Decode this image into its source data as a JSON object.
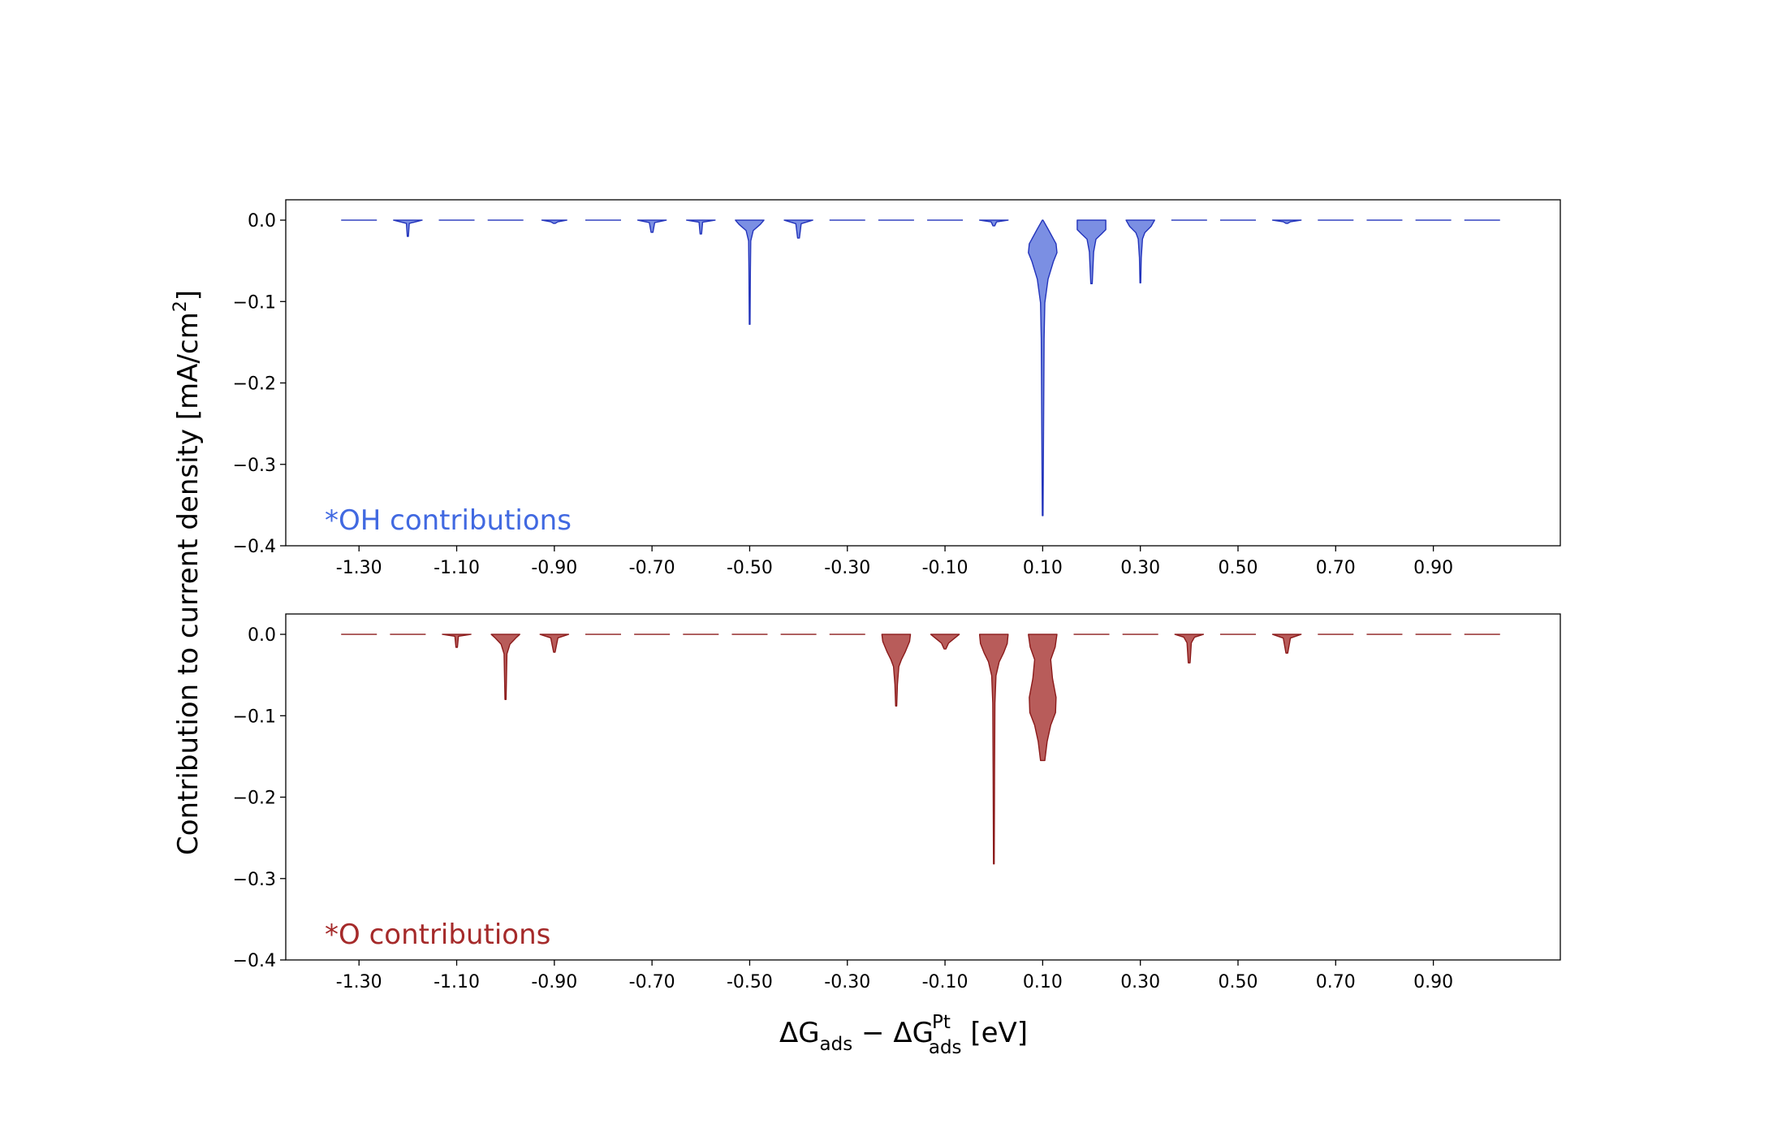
{
  "figure": {
    "ylabel_main": "Contribution to current density [mA/cm",
    "ylabel_sup": "2",
    "ylabel_close": "]",
    "xlabel": {
      "delta1": "ΔG",
      "sub1": "ads",
      "minus": " − ",
      "delta2": "ΔG",
      "sup2": "Pt",
      "sub2": "ads",
      "unit": " [eV]"
    }
  },
  "chart_data": [
    {
      "type": "violin",
      "panel_label": "*OH contributions",
      "panel_label_color": "#4169e1",
      "fill_color": "#7b8fe3",
      "edge_color": "#2233bb",
      "x_tick_labels": [
        "-1.30",
        "-1.10",
        "-0.90",
        "-0.70",
        "-0.50",
        "-0.30",
        "-0.10",
        "0.10",
        "0.30",
        "0.50",
        "0.70",
        "0.90"
      ],
      "x_ticks": [
        -1.3,
        -1.1,
        -0.9,
        -0.7,
        -0.5,
        -0.3,
        -0.1,
        0.1,
        0.3,
        0.5,
        0.7,
        0.9
      ],
      "xlim": [
        -1.45,
        1.16
      ],
      "y_tick_labels": [
        "0.0",
        "−0.1",
        "−0.2",
        "−0.3",
        "−0.4"
      ],
      "y_ticks": [
        0.0,
        -0.1,
        -0.2,
        -0.3,
        -0.4
      ],
      "ylim": [
        -0.4,
        0.025
      ],
      "violins": [
        {
          "x": -1.3,
          "min": 0
        },
        {
          "x": -1.2,
          "min": -0.02,
          "profile": [
            [
              0,
              0.8
            ],
            [
              0.2,
              0.08
            ],
            [
              1,
              0.03
            ]
          ]
        },
        {
          "x": -1.1,
          "min": 0
        },
        {
          "x": -1.0,
          "min": 0
        },
        {
          "x": -0.9,
          "min": -0.004,
          "profile": [
            [
              0,
              0.7
            ],
            [
              0.5,
              0.2
            ],
            [
              1,
              0.05
            ]
          ]
        },
        {
          "x": -0.8,
          "min": 0
        },
        {
          "x": -0.7,
          "min": -0.015,
          "profile": [
            [
              0,
              0.8
            ],
            [
              0.2,
              0.15
            ],
            [
              0.6,
              0.1
            ],
            [
              1,
              0.05
            ]
          ]
        },
        {
          "x": -0.6,
          "min": -0.017,
          "profile": [
            [
              0,
              0.8
            ],
            [
              0.15,
              0.1
            ],
            [
              1,
              0.04
            ]
          ]
        },
        {
          "x": -0.5,
          "min": -0.128,
          "profile": [
            [
              0,
              0.8
            ],
            [
              0.04,
              0.6
            ],
            [
              0.1,
              0.2
            ],
            [
              0.2,
              0.06
            ],
            [
              0.5,
              0.04
            ],
            [
              1,
              0.02
            ]
          ]
        },
        {
          "x": -0.4,
          "min": -0.022,
          "profile": [
            [
              0,
              0.8
            ],
            [
              0.2,
              0.15
            ],
            [
              1,
              0.05
            ]
          ]
        },
        {
          "x": -0.3,
          "min": 0
        },
        {
          "x": -0.2,
          "min": 0
        },
        {
          "x": -0.1,
          "min": 0
        },
        {
          "x": 0.0,
          "min": -0.007,
          "profile": [
            [
              0,
              0.8
            ],
            [
              0.3,
              0.15
            ],
            [
              1,
              0.05
            ]
          ]
        },
        {
          "x": 0.1,
          "min": -0.363,
          "profile": [
            [
              0,
              0.02
            ],
            [
              0.03,
              0.3
            ],
            [
              0.08,
              0.75
            ],
            [
              0.11,
              0.8
            ],
            [
              0.14,
              0.6
            ],
            [
              0.2,
              0.3
            ],
            [
              0.28,
              0.12
            ],
            [
              0.4,
              0.08
            ],
            [
              0.7,
              0.05
            ],
            [
              1,
              0.02
            ]
          ]
        },
        {
          "x": 0.2,
          "min": -0.078,
          "profile": [
            [
              0,
              0.8
            ],
            [
              0.15,
              0.8
            ],
            [
              0.22,
              0.55
            ],
            [
              0.3,
              0.25
            ],
            [
              0.5,
              0.12
            ],
            [
              1,
              0.04
            ]
          ]
        },
        {
          "x": 0.3,
          "min": -0.077,
          "profile": [
            [
              0,
              0.8
            ],
            [
              0.1,
              0.6
            ],
            [
              0.2,
              0.25
            ],
            [
              0.3,
              0.12
            ],
            [
              0.6,
              0.05
            ],
            [
              1,
              0.02
            ]
          ]
        },
        {
          "x": 0.4,
          "min": 0
        },
        {
          "x": 0.5,
          "min": 0
        },
        {
          "x": 0.6,
          "min": -0.004,
          "profile": [
            [
              0,
              0.8
            ],
            [
              0.5,
              0.2
            ],
            [
              1,
              0.05
            ]
          ]
        },
        {
          "x": 0.7,
          "min": 0
        },
        {
          "x": 0.8,
          "min": 0
        },
        {
          "x": 0.9,
          "min": 0
        },
        {
          "x": 1.0,
          "min": 0
        }
      ]
    },
    {
      "type": "violin",
      "panel_label": "*O contributions",
      "panel_label_color": "#a52a2a",
      "fill_color": "#b85c5a",
      "edge_color": "#8b1a1a",
      "x_tick_labels": [
        "-1.30",
        "-1.10",
        "-0.90",
        "-0.70",
        "-0.50",
        "-0.30",
        "-0.10",
        "0.10",
        "0.30",
        "0.50",
        "0.70",
        "0.90"
      ],
      "x_ticks": [
        -1.3,
        -1.1,
        -0.9,
        -0.7,
        -0.5,
        -0.3,
        -0.1,
        0.1,
        0.3,
        0.5,
        0.7,
        0.9
      ],
      "xlim": [
        -1.45,
        1.16
      ],
      "y_tick_labels": [
        "0.0",
        "−0.1",
        "−0.2",
        "−0.3",
        "−0.4"
      ],
      "y_ticks": [
        0.0,
        -0.1,
        -0.2,
        -0.3,
        -0.4
      ],
      "ylim": [
        -0.4,
        0.025
      ],
      "violins": [
        {
          "x": -1.3,
          "min": 0
        },
        {
          "x": -1.2,
          "min": 0
        },
        {
          "x": -1.1,
          "min": -0.016,
          "profile": [
            [
              0,
              0.8
            ],
            [
              0.15,
              0.1
            ],
            [
              1,
              0.04
            ]
          ]
        },
        {
          "x": -1.0,
          "min": -0.08,
          "profile": [
            [
              0,
              0.8
            ],
            [
              0.05,
              0.6
            ],
            [
              0.15,
              0.25
            ],
            [
              0.3,
              0.08
            ],
            [
              1,
              0.03
            ]
          ]
        },
        {
          "x": -0.9,
          "min": -0.022,
          "profile": [
            [
              0,
              0.8
            ],
            [
              0.2,
              0.2
            ],
            [
              1,
              0.04
            ]
          ]
        },
        {
          "x": -0.8,
          "min": 0
        },
        {
          "x": -0.7,
          "min": 0
        },
        {
          "x": -0.6,
          "min": 0
        },
        {
          "x": -0.5,
          "min": 0
        },
        {
          "x": -0.4,
          "min": 0
        },
        {
          "x": -0.3,
          "min": 0
        },
        {
          "x": -0.2,
          "min": -0.088,
          "profile": [
            [
              0,
              0.8
            ],
            [
              0.1,
              0.75
            ],
            [
              0.25,
              0.5
            ],
            [
              0.35,
              0.3
            ],
            [
              0.45,
              0.15
            ],
            [
              0.7,
              0.07
            ],
            [
              1,
              0.03
            ]
          ]
        },
        {
          "x": -0.1,
          "min": -0.018,
          "profile": [
            [
              0,
              0.8
            ],
            [
              0.3,
              0.5
            ],
            [
              0.6,
              0.2
            ],
            [
              1,
              0.05
            ]
          ]
        },
        {
          "x": 0.0,
          "min": -0.282,
          "profile": [
            [
              0,
              0.8
            ],
            [
              0.04,
              0.75
            ],
            [
              0.08,
              0.55
            ],
            [
              0.12,
              0.3
            ],
            [
              0.18,
              0.12
            ],
            [
              0.3,
              0.06
            ],
            [
              0.6,
              0.04
            ],
            [
              1,
              0.02
            ]
          ]
        },
        {
          "x": 0.1,
          "min": -0.155,
          "profile": [
            [
              0,
              0.8
            ],
            [
              0.1,
              0.7
            ],
            [
              0.2,
              0.45
            ],
            [
              0.35,
              0.55
            ],
            [
              0.5,
              0.75
            ],
            [
              0.62,
              0.72
            ],
            [
              0.72,
              0.45
            ],
            [
              0.85,
              0.25
            ],
            [
              1,
              0.12
            ]
          ]
        },
        {
          "x": 0.2,
          "min": 0
        },
        {
          "x": 0.3,
          "min": 0
        },
        {
          "x": 0.4,
          "min": -0.035,
          "profile": [
            [
              0,
              0.8
            ],
            [
              0.1,
              0.3
            ],
            [
              0.3,
              0.12
            ],
            [
              1,
              0.05
            ]
          ]
        },
        {
          "x": 0.5,
          "min": 0
        },
        {
          "x": 0.6,
          "min": -0.023,
          "profile": [
            [
              0,
              0.8
            ],
            [
              0.2,
              0.2
            ],
            [
              1,
              0.05
            ]
          ]
        },
        {
          "x": 0.7,
          "min": 0
        },
        {
          "x": 0.8,
          "min": 0
        },
        {
          "x": 0.9,
          "min": 0
        },
        {
          "x": 1.0,
          "min": 0
        }
      ]
    }
  ]
}
